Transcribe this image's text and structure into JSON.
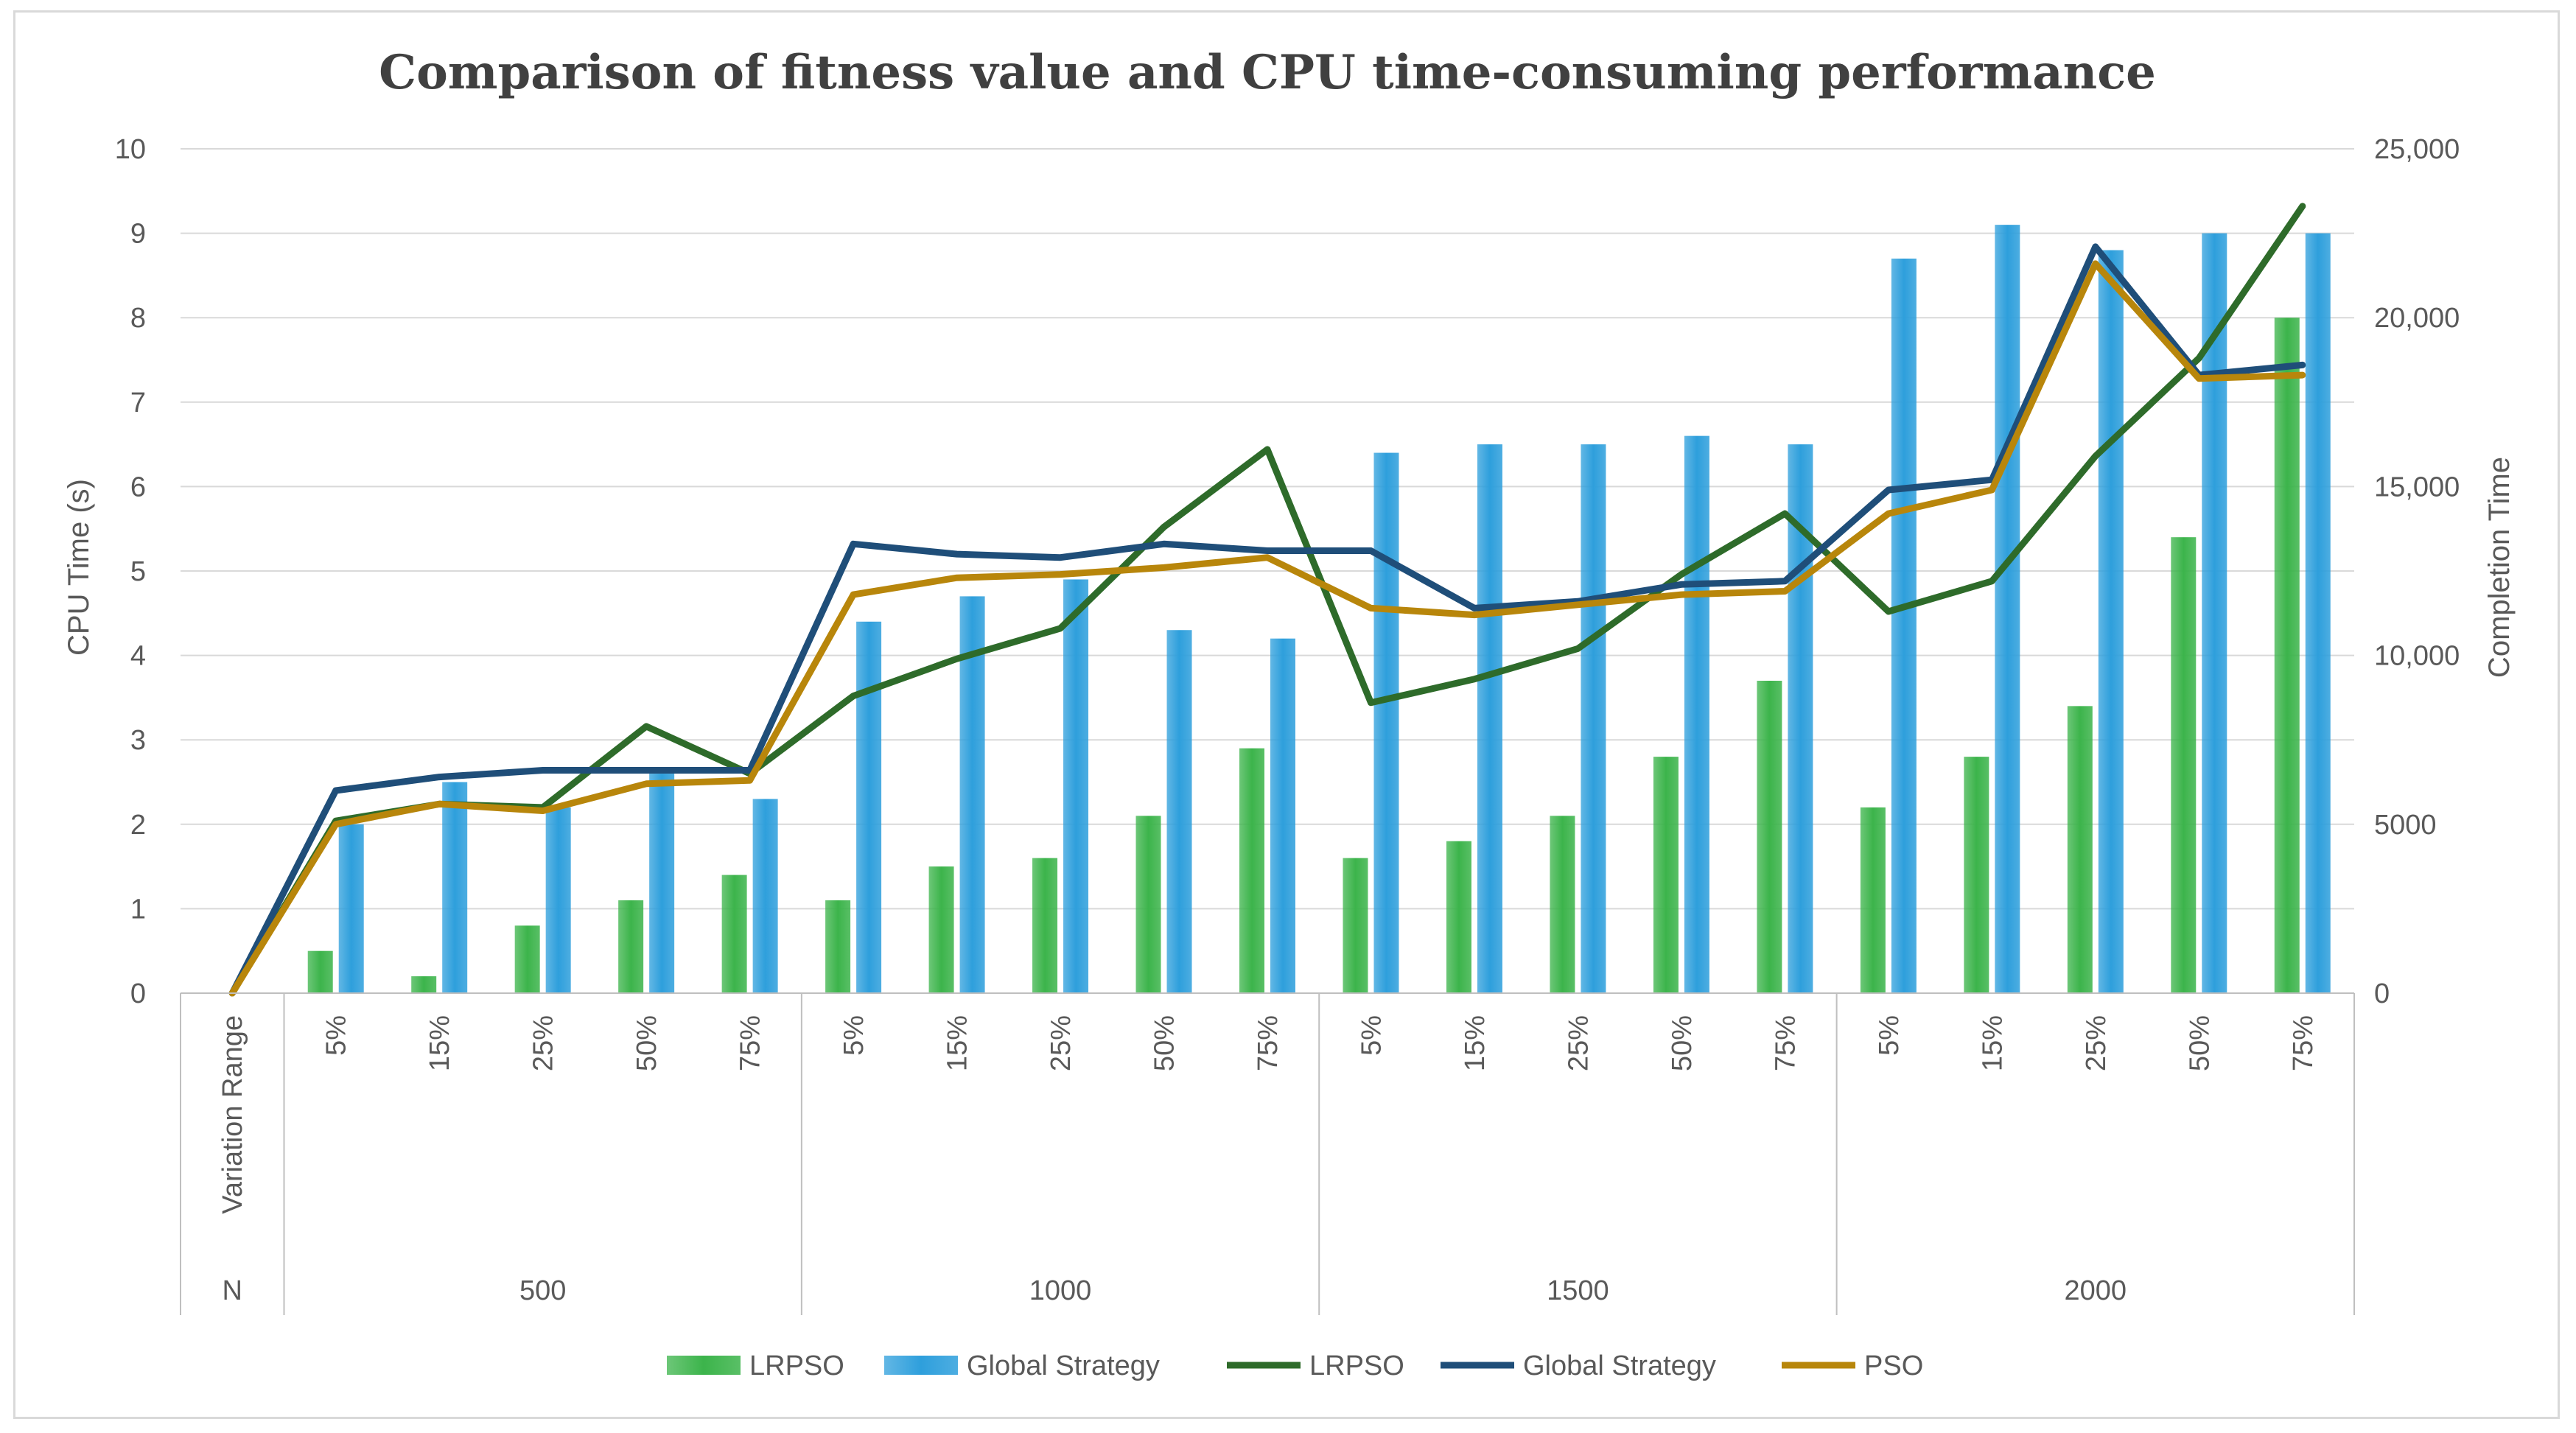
{
  "chart_data": {
    "type": "bar",
    "title": "Comparison of fitness value and CPU time-consuming performance",
    "y_left_label": "CPU Time (s)",
    "y_right_label": "Completion Time",
    "y_left_ticks": [
      "0",
      "1",
      "2",
      "3",
      "4",
      "5",
      "6",
      "7",
      "8",
      "9",
      "10"
    ],
    "y_right_ticks": [
      "0",
      "5000",
      "10,000",
      "15,000",
      "20,000",
      "25,000"
    ],
    "ylim_left": [
      0,
      10
    ],
    "ylim_right": [
      0,
      25000
    ],
    "x_level1_header": "Variation Range",
    "x_level2_header": "N",
    "x_groups": [
      {
        "label": "500",
        "subs": [
          "5%",
          "15%",
          "25%",
          "50%",
          "75%"
        ]
      },
      {
        "label": "1000",
        "subs": [
          "5%",
          "15%",
          "25%",
          "50%",
          "75%"
        ]
      },
      {
        "label": "1500",
        "subs": [
          "5%",
          "15%",
          "25%",
          "50%",
          "75%"
        ]
      },
      {
        "label": "2000",
        "subs": [
          "5%",
          "15%",
          "25%",
          "50%",
          "75%"
        ]
      }
    ],
    "bar_series": [
      {
        "name": "LRPSO",
        "axis": "left",
        "color": "#3cb44b",
        "values": [
          0.5,
          0.2,
          0.8,
          1.1,
          1.4,
          1.1,
          1.5,
          1.6,
          2.1,
          2.9,
          1.6,
          1.8,
          2.1,
          2.8,
          3.7,
          2.2,
          2.8,
          3.4,
          5.4,
          8.0
        ]
      },
      {
        "name": "Global Strategy",
        "axis": "left",
        "color": "#2e9fdc",
        "values": [
          2.0,
          2.5,
          2.2,
          2.6,
          2.3,
          4.4,
          4.7,
          4.9,
          4.3,
          4.2,
          6.4,
          6.5,
          6.5,
          6.6,
          6.5,
          8.7,
          9.1,
          8.8,
          9.0,
          9.0
        ]
      }
    ],
    "line_series": [
      {
        "name": "LRPSO",
        "axis": "right",
        "color": "#2e6b2a",
        "values": [
          0,
          5100,
          5600,
          5500,
          7900,
          6500,
          8800,
          9900,
          10800,
          13800,
          16100,
          8600,
          9300,
          10200,
          12400,
          14200,
          11300,
          12200,
          15900,
          18800,
          23300
        ]
      },
      {
        "name": "Global Strategy",
        "axis": "right",
        "color": "#1f4e79",
        "values": [
          0,
          6000,
          6400,
          6600,
          6600,
          6600,
          13300,
          13000,
          12900,
          13300,
          13100,
          13100,
          11400,
          11600,
          12100,
          12200,
          14900,
          15200,
          22100,
          18300,
          18600
        ]
      },
      {
        "name": "PSO",
        "axis": "right",
        "color": "#b8860b",
        "values": [
          0,
          5000,
          5600,
          5400,
          6200,
          6300,
          11800,
          12300,
          12400,
          12600,
          12900,
          11400,
          11200,
          11500,
          11800,
          11900,
          14200,
          14900,
          21600,
          18200,
          18300
        ]
      }
    ],
    "legend_position": "bottom",
    "grid": true
  }
}
